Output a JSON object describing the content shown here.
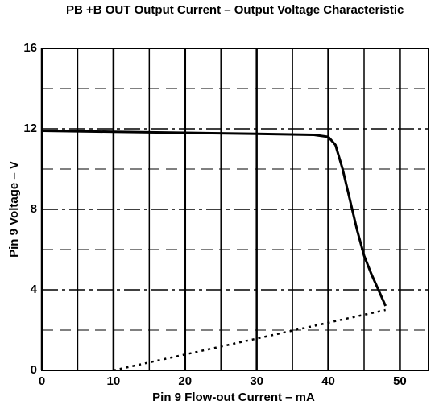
{
  "chart_data": {
    "type": "line",
    "title": "PB +B OUT Output Current – Output Voltage Characteristic",
    "x_label": "Pin 9 Flow-out Current – mA",
    "y_label": "Pin 9 Voltage – V",
    "xlim": [
      0,
      54
    ],
    "ylim": [
      0,
      16
    ],
    "xticks": [
      0,
      10,
      20,
      30,
      40,
      50
    ],
    "yticks": [
      0,
      4,
      8,
      12,
      16
    ],
    "x_minor_grid": [
      5,
      15,
      25,
      35,
      45
    ],
    "y_minor_grid": [
      2,
      6,
      10,
      14
    ],
    "grid": true,
    "color": "#000000",
    "lines": [
      {
        "style": "solid",
        "x": [
          0,
          10,
          20,
          30,
          38,
          40,
          41,
          42,
          43,
          44,
          45,
          46,
          47,
          48
        ],
        "y": [
          11.9,
          11.85,
          11.8,
          11.75,
          11.7,
          11.6,
          11.2,
          10,
          8.5,
          7,
          5.7,
          4.8,
          4,
          3.2
        ]
      },
      {
        "style": "dotted",
        "x": [
          10,
          48
        ],
        "y": [
          0,
          3
        ]
      }
    ]
  }
}
